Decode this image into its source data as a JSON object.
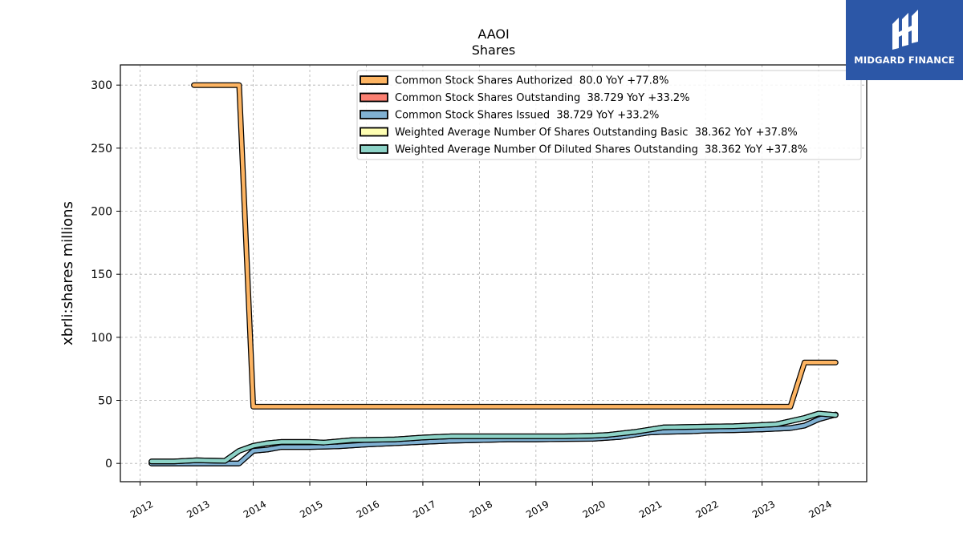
{
  "brand": {
    "name": "MIDGARD FINANCE",
    "color": "#2c57a7",
    "icon": "midgard-m-logo-icon"
  },
  "chart_data": {
    "type": "line",
    "title": "AAOI",
    "subtitle": "Shares",
    "xlabel": "",
    "ylabel": "xbrli:shares millions",
    "xlim": [
      2011.65,
      2024.85
    ],
    "ylim": [
      -14.5,
      316
    ],
    "x_ticks": [
      "2012",
      "2013",
      "2014",
      "2015",
      "2016",
      "2017",
      "2018",
      "2019",
      "2020",
      "2021",
      "2022",
      "2023",
      "2024"
    ],
    "y_ticks": [
      "0",
      "50",
      "100",
      "150",
      "200",
      "250",
      "300"
    ],
    "grid": true,
    "legend_position": "top-right",
    "series": [
      {
        "name": "Common Stock Shares Authorized",
        "legend": "Common Stock Shares Authorized  80.0 YoY +77.8%",
        "color": "#fdb462",
        "points": [
          [
            2012.95,
            300
          ],
          [
            2013.75,
            300
          ],
          [
            2014.0,
            45
          ],
          [
            2023.5,
            45
          ],
          [
            2023.75,
            80
          ],
          [
            2024.3,
            80
          ]
        ]
      },
      {
        "name": "Common Stock Shares Outstanding",
        "legend": "Common Stock Shares Outstanding  38.729 YoY +33.2%",
        "color": "#fb8072",
        "points": [
          [
            2012.2,
            0
          ],
          [
            2013.6,
            0
          ],
          [
            2013.75,
            0
          ],
          [
            2014.0,
            10
          ],
          [
            2014.25,
            11
          ],
          [
            2014.5,
            13
          ],
          [
            2015.0,
            13
          ],
          [
            2015.5,
            13.5
          ],
          [
            2016.0,
            15
          ],
          [
            2016.5,
            16
          ],
          [
            2017.0,
            17
          ],
          [
            2017.5,
            18
          ],
          [
            2018.0,
            18.5
          ],
          [
            2018.5,
            19
          ],
          [
            2019.0,
            19
          ],
          [
            2019.5,
            19.3
          ],
          [
            2020.0,
            19.5
          ],
          [
            2020.5,
            21
          ],
          [
            2021.0,
            24.5
          ],
          [
            2021.25,
            25
          ],
          [
            2021.75,
            25.5
          ],
          [
            2022.0,
            26
          ],
          [
            2022.5,
            26.3
          ],
          [
            2023.0,
            27
          ],
          [
            2023.5,
            28
          ],
          [
            2023.75,
            30
          ],
          [
            2024.0,
            35
          ],
          [
            2024.3,
            38.7
          ]
        ]
      },
      {
        "name": "Common Stock Shares Issued",
        "legend": "Common Stock Shares Issued  38.729 YoY +33.2%",
        "color": "#80b1d3",
        "points": [
          [
            2012.2,
            0
          ],
          [
            2013.6,
            0
          ],
          [
            2013.75,
            0
          ],
          [
            2014.0,
            10
          ],
          [
            2014.25,
            11
          ],
          [
            2014.5,
            13
          ],
          [
            2015.0,
            13
          ],
          [
            2015.5,
            13.5
          ],
          [
            2016.0,
            15
          ],
          [
            2016.5,
            16
          ],
          [
            2017.0,
            17
          ],
          [
            2017.5,
            18
          ],
          [
            2018.0,
            18.5
          ],
          [
            2018.5,
            19
          ],
          [
            2019.0,
            19
          ],
          [
            2019.5,
            19.3
          ],
          [
            2020.0,
            19.5
          ],
          [
            2020.5,
            21
          ],
          [
            2021.0,
            24.5
          ],
          [
            2021.25,
            25
          ],
          [
            2021.75,
            25.5
          ],
          [
            2022.0,
            26
          ],
          [
            2022.5,
            26.3
          ],
          [
            2023.0,
            27
          ],
          [
            2023.5,
            28
          ],
          [
            2023.75,
            30
          ],
          [
            2024.0,
            35
          ],
          [
            2024.3,
            38.7
          ]
        ]
      },
      {
        "name": "Weighted Average Number Of Shares Outstanding Basic",
        "legend": "Weighted Average Number Of Shares Outstanding Basic  38.362 YoY +37.8%",
        "color": "#ffffb3",
        "points": [
          [
            2012.2,
            1.5
          ],
          [
            2012.6,
            1.5
          ],
          [
            2013.0,
            2.5
          ],
          [
            2013.5,
            2
          ],
          [
            2013.75,
            10
          ],
          [
            2014.0,
            14
          ],
          [
            2014.25,
            16
          ],
          [
            2014.5,
            17
          ],
          [
            2015.0,
            17
          ],
          [
            2015.25,
            16.5
          ],
          [
            2015.75,
            18.5
          ],
          [
            2016.5,
            19
          ],
          [
            2017.0,
            20.5
          ],
          [
            2017.5,
            21.5
          ],
          [
            2018.0,
            21.5
          ],
          [
            2018.5,
            21.5
          ],
          [
            2019.0,
            21.5
          ],
          [
            2019.5,
            21.5
          ],
          [
            2020.0,
            22
          ],
          [
            2020.25,
            22.5
          ],
          [
            2020.75,
            25
          ],
          [
            2021.25,
            28.5
          ],
          [
            2021.75,
            29
          ],
          [
            2022.5,
            29.5
          ],
          [
            2023.0,
            30.5
          ],
          [
            2023.25,
            31
          ],
          [
            2023.75,
            36
          ],
          [
            2024.0,
            39.5
          ],
          [
            2024.3,
            38.4
          ]
        ]
      },
      {
        "name": "Weighted Average Number Of Diluted Shares Outstanding",
        "legend": "Weighted Average Number Of Diluted Shares Outstanding  38.362 YoY +37.8%",
        "color": "#8dd3c7",
        "points": [
          [
            2012.2,
            1.5
          ],
          [
            2012.6,
            1.5
          ],
          [
            2013.0,
            2.5
          ],
          [
            2013.5,
            2
          ],
          [
            2013.75,
            10
          ],
          [
            2014.0,
            14
          ],
          [
            2014.25,
            16
          ],
          [
            2014.5,
            17
          ],
          [
            2015.0,
            17
          ],
          [
            2015.25,
            16.5
          ],
          [
            2015.75,
            18.5
          ],
          [
            2016.5,
            19
          ],
          [
            2017.0,
            20.5
          ],
          [
            2017.5,
            21.5
          ],
          [
            2018.0,
            21.5
          ],
          [
            2018.5,
            21.5
          ],
          [
            2019.0,
            21.5
          ],
          [
            2019.5,
            21.5
          ],
          [
            2020.0,
            22
          ],
          [
            2020.25,
            22.5
          ],
          [
            2020.75,
            25
          ],
          [
            2021.25,
            28.5
          ],
          [
            2021.75,
            29
          ],
          [
            2022.5,
            29.5
          ],
          [
            2023.0,
            30.5
          ],
          [
            2023.25,
            31
          ],
          [
            2023.75,
            36
          ],
          [
            2024.0,
            39.5
          ],
          [
            2024.3,
            38.4
          ]
        ]
      }
    ]
  }
}
